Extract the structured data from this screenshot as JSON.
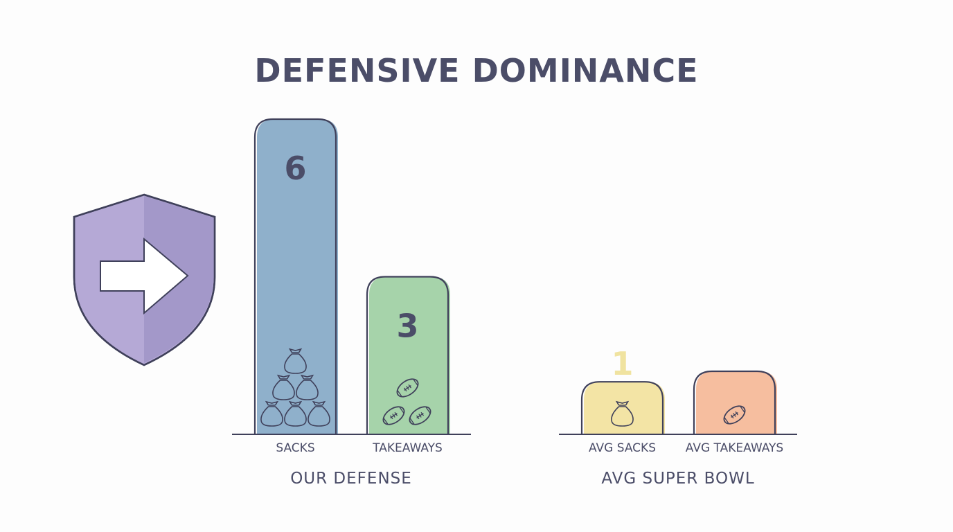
{
  "chart_data": {
    "type": "bar",
    "title": "DEFENSIVE DOMINANCE",
    "groups": [
      {
        "name": "OUR DEFENSE",
        "bars": [
          {
            "category": "SACKS",
            "value": 6,
            "label": "6",
            "color": "#8fb0cb",
            "icon": "sack-bag-icon",
            "icon_count": 6
          },
          {
            "category": "TAKEAWAYS",
            "value": 3,
            "label": "3",
            "color": "#a6d3aa",
            "icon": "football-icon",
            "icon_count": 3
          }
        ]
      },
      {
        "name": "AVG SUPER BOWL",
        "bars": [
          {
            "category": "AVG SACKS",
            "value": 1,
            "label": "1",
            "color": "#f3e4a5",
            "icon": "sack-bag-icon",
            "icon_count": 1
          },
          {
            "category": "AVG TAKEAWAYS",
            "value": 1.2,
            "color": "#f6be9f",
            "icon": "football-icon",
            "icon_count": 1
          }
        ]
      }
    ],
    "ylim": [
      0,
      6
    ],
    "grid": false,
    "legend": "none"
  },
  "decoration": {
    "icon": "shield-arrow-icon",
    "colors": [
      "#b5a9d6",
      "#a398c9"
    ]
  },
  "outline_color": "#3f405a",
  "label_value_color_default": "#4b4d68",
  "label_value_color_avg": "#f0e3a0"
}
